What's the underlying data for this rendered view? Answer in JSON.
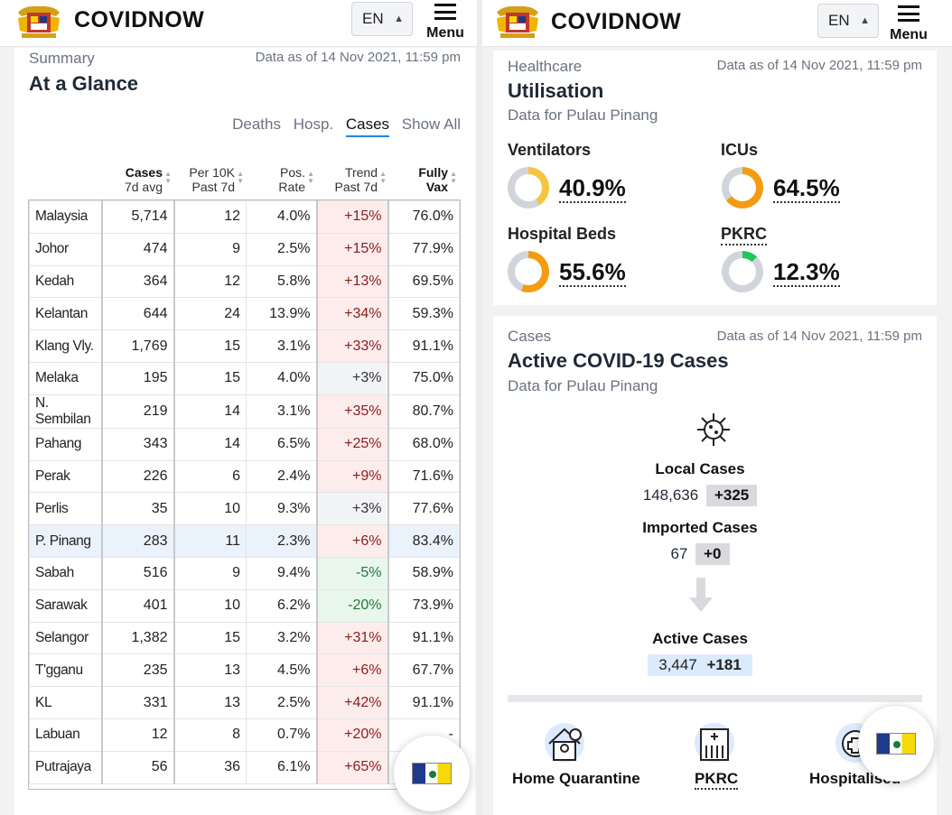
{
  "left": {
    "header": {
      "brand": "COVIDNOW",
      "lang": "EN",
      "menu": "Menu"
    },
    "card": {
      "section": "Summary",
      "title": "At a Glance",
      "as_of": "Data as of 14 Nov 2021, 11:59 pm",
      "tabs": [
        "Deaths",
        "Hosp.",
        "Cases",
        "Show All"
      ],
      "active_tab": "Cases",
      "headers": [
        {
          "b": "Cases",
          "s": "7d avg"
        },
        {
          "b": "Per 10K",
          "s": "Past 7d"
        },
        {
          "b": "Pos.",
          "s": "Rate"
        },
        {
          "b": "Trend",
          "s": "Past 7d"
        },
        {
          "b": "Fully",
          "s": "Vax"
        }
      ],
      "rows": [
        [
          "Malaysia",
          "5,714",
          "12",
          "4.0%",
          "+15%",
          "76.0%"
        ],
        [
          "Johor",
          "474",
          "9",
          "2.5%",
          "+15%",
          "77.9%"
        ],
        [
          "Kedah",
          "364",
          "12",
          "5.8%",
          "+13%",
          "69.5%"
        ],
        [
          "Kelantan",
          "644",
          "24",
          "13.9%",
          "+34%",
          "59.3%"
        ],
        [
          "Klang Vly.",
          "1,769",
          "15",
          "3.1%",
          "+33%",
          "91.1%"
        ],
        [
          "Melaka",
          "195",
          "15",
          "4.0%",
          "+3%",
          "75.0%"
        ],
        [
          "N. Sembilan",
          "219",
          "14",
          "3.1%",
          "+35%",
          "80.7%"
        ],
        [
          "Pahang",
          "343",
          "14",
          "6.5%",
          "+25%",
          "68.0%"
        ],
        [
          "Perak",
          "226",
          "6",
          "2.4%",
          "+9%",
          "71.6%"
        ],
        [
          "Perlis",
          "35",
          "10",
          "9.3%",
          "+3%",
          "77.6%"
        ],
        [
          "P. Pinang",
          "283",
          "11",
          "2.3%",
          "+6%",
          "83.4%"
        ],
        [
          "Sabah",
          "516",
          "9",
          "9.4%",
          "-5%",
          "58.9%"
        ],
        [
          "Sarawak",
          "401",
          "10",
          "6.2%",
          "-20%",
          "73.9%"
        ],
        [
          "Selangor",
          "1,382",
          "15",
          "3.2%",
          "+31%",
          "91.1%"
        ],
        [
          "T'gganu",
          "235",
          "13",
          "4.5%",
          "+6%",
          "67.7%"
        ],
        [
          "KL",
          "331",
          "13",
          "2.5%",
          "+42%",
          "91.1%"
        ],
        [
          "Labuan",
          "12",
          "8",
          "0.7%",
          "+20%",
          "-"
        ],
        [
          "Putrajaya",
          "56",
          "36",
          "6.1%",
          "+65%",
          "-"
        ]
      ],
      "highlight_row": "P. Pinang"
    }
  },
  "right": {
    "header": {
      "brand": "COVIDNOW",
      "lang": "EN",
      "menu": "Menu"
    },
    "healthcare": {
      "section": "Healthcare",
      "title": "Utilisation",
      "as_of": "Data as of 14 Nov 2021, 11:59 pm",
      "subtitle": "Data for Pulau Pinang",
      "metrics": [
        {
          "label": "Ventilators",
          "value": "40.9%",
          "fraction": 0.409,
          "color": "#f5c542"
        },
        {
          "label": "ICUs",
          "value": "64.5%",
          "fraction": 0.645,
          "color": "#f39c12"
        },
        {
          "label": "Hospital Beds",
          "value": "55.6%",
          "fraction": 0.556,
          "color": "#f39c12"
        },
        {
          "label": "PKRC",
          "value": "12.3%",
          "fraction": 0.123,
          "color": "#22c55e"
        }
      ]
    },
    "cases": {
      "section": "Cases",
      "title": "Active COVID-19 Cases",
      "as_of": "Data as of 14 Nov 2021, 11:59 pm",
      "subtitle": "Data for Pulau Pinang",
      "local_label": "Local Cases",
      "local_value": "148,636",
      "local_delta": "+325",
      "imported_label": "Imported Cases",
      "imported_value": "67",
      "imported_delta": "+0",
      "active_label": "Active Cases",
      "active_value": "3,447",
      "active_delta": "+181"
    },
    "bottom": [
      "Home Quarantine",
      "PKRC",
      "Hospitalised"
    ]
  }
}
